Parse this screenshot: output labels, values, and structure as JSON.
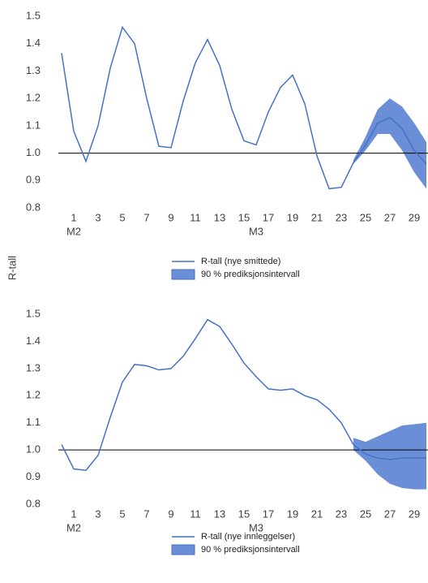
{
  "y_label": "R-tall",
  "chart_data": [
    {
      "type": "line",
      "xlim": [
        0,
        30
      ],
      "ylim": [
        0.8,
        1.5
      ],
      "xticks": [
        1,
        3,
        5,
        7,
        9,
        11,
        13,
        15,
        17,
        19,
        21,
        23,
        25,
        27,
        29
      ],
      "yticks": [
        0.8,
        0.9,
        {
          "value": 1,
          "label": "1.0"
        },
        1.1,
        1.2,
        1.3,
        1.4,
        1.5
      ],
      "x_group_labels": [
        {
          "value": 1,
          "label": "M2"
        },
        {
          "value": 16,
          "label": "M3"
        }
      ],
      "reference_line": 1,
      "series": [
        {
          "name": "R-tall (nye smittede)",
          "kind": "line",
          "color": "#4472c4",
          "x": [
            0,
            1,
            2,
            3,
            4,
            5,
            6,
            7,
            8,
            9,
            10,
            11,
            12,
            13,
            14,
            15,
            16,
            17,
            18,
            19,
            20,
            21,
            22,
            23,
            24,
            25,
            26,
            27,
            28,
            29,
            30
          ],
          "values": [
            1.365,
            1.08,
            0.97,
            1.1,
            1.31,
            1.46,
            1.4,
            1.2,
            1.025,
            1.02,
            1.19,
            1.33,
            1.415,
            1.32,
            1.16,
            1.045,
            1.03,
            1.15,
            1.24,
            1.285,
            1.18,
            0.99,
            0.87,
            0.875,
            0.965,
            1.03,
            1.11,
            1.13,
            1.09,
            1.01,
            0.96
          ]
        },
        {
          "name": "90 % prediksjonsintervall",
          "kind": "band",
          "color": "#6a8fd6",
          "x": [
            24,
            25,
            26,
            27,
            28,
            29,
            30
          ],
          "lower": [
            0.96,
            1.01,
            1.07,
            1.07,
            1.01,
            0.93,
            0.87
          ],
          "upper": [
            0.975,
            1.06,
            1.16,
            1.2,
            1.17,
            1.11,
            1.04
          ]
        }
      ]
    },
    {
      "type": "line",
      "xlim": [
        0,
        30
      ],
      "ylim": [
        0.8,
        1.5
      ],
      "xticks": [
        1,
        3,
        5,
        7,
        9,
        11,
        13,
        15,
        17,
        19,
        21,
        23,
        25,
        27,
        29
      ],
      "yticks": [
        0.8,
        0.9,
        {
          "value": 1,
          "label": "1.0"
        },
        1.1,
        1.2,
        1.3,
        1.4,
        1.5
      ],
      "x_group_labels": [
        {
          "value": 1,
          "label": "M2"
        },
        {
          "value": 16,
          "label": "M3"
        }
      ],
      "reference_line": 1,
      "series": [
        {
          "name": "R-tall (nye innleggelser)",
          "kind": "line",
          "color": "#4472c4",
          "x": [
            0,
            1,
            2,
            3,
            4,
            5,
            6,
            7,
            8,
            9,
            10,
            11,
            12,
            13,
            14,
            15,
            16,
            17,
            18,
            19,
            20,
            21,
            22,
            23,
            24,
            25,
            26,
            27,
            28,
            29,
            30
          ],
          "values": [
            1.02,
            0.93,
            0.925,
            0.98,
            1.12,
            1.25,
            1.315,
            1.31,
            1.295,
            1.3,
            1.345,
            1.41,
            1.48,
            1.455,
            1.39,
            1.32,
            1.27,
            1.225,
            1.22,
            1.225,
            1.2,
            1.185,
            1.15,
            1.1,
            1.02,
            0.985,
            0.97,
            0.965,
            0.97,
            0.97,
            0.97
          ]
        },
        {
          "name": "90 % prediksjonsintervall",
          "kind": "band",
          "color": "#6a8fd6",
          "x": [
            24,
            25,
            26,
            27,
            28,
            29,
            30
          ],
          "lower": [
            1.0,
            0.96,
            0.91,
            0.875,
            0.86,
            0.855,
            0.855
          ],
          "upper": [
            1.045,
            1.03,
            1.05,
            1.07,
            1.09,
            1.095,
            1.1
          ]
        }
      ]
    }
  ]
}
